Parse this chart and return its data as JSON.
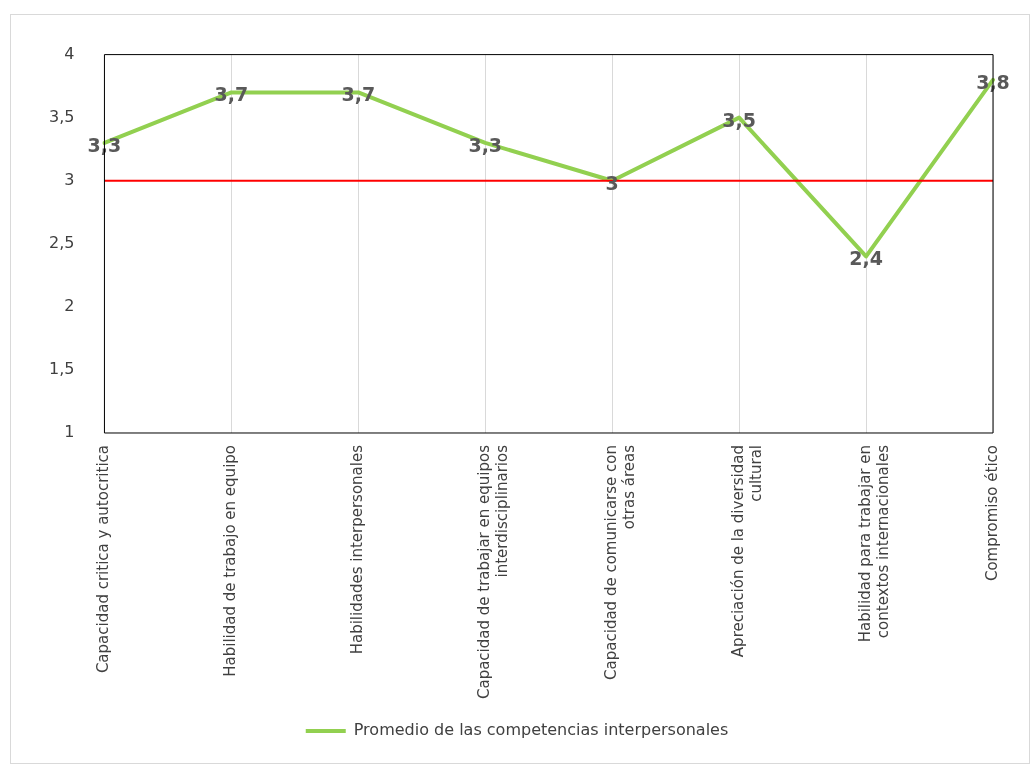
{
  "chart_data": {
    "type": "line",
    "categories": [
      "Capacidad critica y autocritica",
      "Habilidad de trabajo en equipo",
      "Habilidades interpersonales",
      "Capacidad de trabajar en equipos interdisciplinarios",
      "Capacidad de comunicarse con otras áreas",
      "Apreciación de la diversidad cultural",
      "Habilidad para trabajar en contextos internacionales",
      "Compromiso ético"
    ],
    "series": [
      {
        "name": "Promedio de las competencias interpersonales",
        "color": "#92d050",
        "values": [
          3.3,
          3.7,
          3.7,
          3.3,
          3,
          3.5,
          2.4,
          3.8
        ],
        "value_labels": [
          "3,3",
          "3,7",
          "3,7",
          "3,3",
          "3",
          "3,5",
          "2,4",
          "3,8"
        ]
      }
    ],
    "ylim": [
      1,
      4
    ],
    "yticks": [
      1,
      {
        "value": 1.5,
        "label": "1,5"
      },
      2,
      {
        "value": 2.5,
        "label": "2,5"
      },
      3,
      {
        "value": 3.5,
        "label": "3,5"
      },
      4
    ],
    "ref_lines": [
      {
        "axis": "y",
        "value": 3,
        "color": "#ff0000"
      }
    ],
    "grid": "x",
    "legend": "bottom",
    "marker": "none",
    "line_style": "solid"
  }
}
